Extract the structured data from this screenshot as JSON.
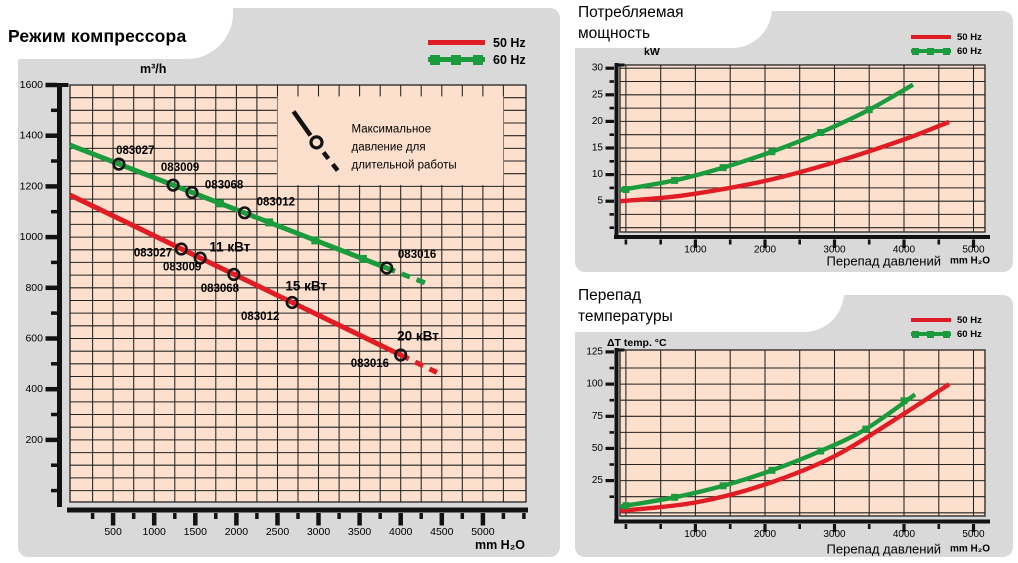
{
  "colors": {
    "panel": "#d9d9d9",
    "plot_bg": "#fce0cd",
    "grid": "#222222",
    "axis": "#121212",
    "red": "#e01d24",
    "green": "#1b9b3d",
    "text": "#000000"
  },
  "chart_data": [
    {
      "id": "compressor-mode",
      "type": "line",
      "title": "Режим компрессора",
      "ylabel": "m³/h",
      "xlabel": "",
      "x_unit": "mm H₂O",
      "xlim": [
        -25,
        5525
      ],
      "ylim": [
        -45,
        1600
      ],
      "x_ticks": [
        500,
        1000,
        1500,
        2000,
        2500,
        3000,
        3500,
        4000,
        4500,
        5000
      ],
      "x_minor": 250,
      "x_grid": 250,
      "y_ticks": [
        200,
        400,
        600,
        800,
        1000,
        1200,
        1400,
        1600
      ],
      "y_minor": 100,
      "y_grid": 50,
      "grid": true,
      "legend_position": "top-right",
      "legend": [
        {
          "label": "50 Hz",
          "color": "red"
        },
        {
          "label": "60 Hz",
          "color": "green"
        }
      ],
      "series": [
        {
          "name": "50 Hz",
          "color": "red",
          "points": [
            [
              -25,
              1166
            ],
            [
              4000,
              535
            ]
          ],
          "dashed_ext": [
            [
              4440,
              466
            ]
          ],
          "markers": [
            {
              "shape": "circle",
              "points": [
                [
                  1330,
                  953
                ],
                [
                  1560,
                  917
                ],
                [
                  1970,
                  853
                ],
                [
                  2680,
                  742
                ],
                [
                  4000,
                  535
                ]
              ]
            }
          ],
          "marker_labels": [
            {
              "text": "083027",
              "x": 985,
              "y": 935
            },
            {
              "text": "083009",
              "x": 1340,
              "y": 880
            },
            {
              "text": "083068",
              "x": 1800,
              "y": 795
            },
            {
              "text": "083012",
              "x": 2290,
              "y": 685
            },
            {
              "text": "083016",
              "x": 3625,
              "y": 500
            }
          ]
        },
        {
          "name": "60 Hz",
          "color": "green",
          "points": [
            [
              -25,
              1363
            ],
            [
              3830,
              878
            ]
          ],
          "dashed_ext": [
            [
              4300,
              819
            ]
          ],
          "markers": [
            {
              "shape": "circle",
              "points": [
                [
                  570,
                  1288
                ],
                [
                  1230,
                  1205
                ],
                [
                  1460,
                  1176
                ],
                [
                  2100,
                  1096
                ],
                [
                  3830,
                  878
                ]
              ]
            },
            {
              "shape": "square",
              "points": [
                [
                  1800,
                  1133
                ],
                [
                  2400,
                  1058
                ],
                [
                  2960,
                  987
                ],
                [
                  3540,
                  914
                ]
              ]
            }
          ],
          "marker_labels": [
            {
              "text": "083027",
              "x": 770,
              "y": 1340
            },
            {
              "text": "083009",
              "x": 1315,
              "y": 1272
            },
            {
              "text": "083068",
              "x": 1850,
              "y": 1203
            },
            {
              "text": "083012",
              "x": 2480,
              "y": 1136
            },
            {
              "text": "083016",
              "x": 4200,
              "y": 930
            }
          ]
        }
      ],
      "extra_labels": [
        {
          "text": "11 кВт",
          "x": 1920,
          "y": 960
        },
        {
          "text": "15 кВт",
          "x": 2850,
          "y": 807
        },
        {
          "text": "20 кВт",
          "x": 4210,
          "y": 610
        }
      ],
      "annotation": {
        "lines": [
          "Максимальное",
          "давление для",
          "длительной работы"
        ],
        "box": {
          "x1": 2500,
          "y1": 1205,
          "x2": 5250,
          "y2": 1555
        }
      }
    },
    {
      "id": "power-consumption",
      "type": "line",
      "title": "Потребляемая мощность",
      "ylabel": "kW",
      "xlabel": "Перепад давлений",
      "x_unit": "mm H₂O",
      "xlim": [
        -85,
        5165
      ],
      "ylim": [
        -0.8,
        30.6
      ],
      "x_ticks": [
        1000,
        2000,
        3000,
        4000,
        5000
      ],
      "x_minor": 500,
      "x_grid": 500,
      "y_ticks": [
        5,
        10,
        15,
        20,
        25,
        30
      ],
      "y_minor": 2.5,
      "y_grid": 2.5,
      "grid": true,
      "legend_position": "top-right",
      "legend": [
        {
          "label": "50 Hz",
          "color": "red"
        },
        {
          "label": "60 Hz",
          "color": "green"
        }
      ],
      "series": [
        {
          "name": "50 Hz",
          "color": "red",
          "points": [
            [
              -85,
              5.0
            ],
            [
              500,
              5.6
            ],
            [
              1000,
              6.4
            ],
            [
              2000,
              8.8
            ],
            [
              3000,
              12.3
            ],
            [
              4000,
              16.6
            ],
            [
              4650,
              19.9
            ]
          ],
          "markers": [],
          "marker_labels": []
        },
        {
          "name": "60 Hz",
          "color": "green",
          "points": [
            [
              -85,
              7.1
            ],
            [
              700,
              8.9
            ],
            [
              1400,
              11.3
            ],
            [
              2100,
              14.3
            ],
            [
              2800,
              17.9
            ],
            [
              3500,
              22.2
            ],
            [
              4130,
              26.9
            ]
          ],
          "markers": [
            {
              "shape": "square",
              "points": [
                [
                  0,
                  7.2
                ],
                [
                  700,
                  8.9
                ],
                [
                  1400,
                  11.3
                ],
                [
                  2100,
                  14.3
                ],
                [
                  2800,
                  17.9
                ],
                [
                  3500,
                  22.2
                ]
              ]
            }
          ],
          "marker_labels": []
        }
      ],
      "extra_labels": []
    },
    {
      "id": "temperature-differential",
      "type": "line",
      "title": "Перепад температуры",
      "ylabel": "ΔT temp. °C",
      "xlabel": "Перепад давлений",
      "x_unit": "mm H₂O",
      "xlim": [
        -85,
        5165
      ],
      "ylim": [
        -2.5,
        126.5
      ],
      "x_ticks": [
        1000,
        2000,
        3000,
        4000,
        5000
      ],
      "x_minor": 500,
      "x_grid": 500,
      "y_ticks": [
        25,
        50,
        75,
        100,
        125
      ],
      "y_minor": 12.5,
      "y_grid": 12.5,
      "grid": true,
      "legend_position": "top-right",
      "legend": [
        {
          "label": "50 Hz",
          "color": "red"
        },
        {
          "label": "60 Hz",
          "color": "green"
        }
      ],
      "series": [
        {
          "name": "50 Hz",
          "color": "red",
          "points": [
            [
              -85,
              1.5
            ],
            [
              1000,
              8
            ],
            [
              2000,
              22
            ],
            [
              3000,
              44
            ],
            [
              4000,
              77
            ],
            [
              4650,
              100
            ]
          ],
          "markers": [],
          "marker_labels": []
        },
        {
          "name": "60 Hz",
          "color": "green",
          "points": [
            [
              -85,
              4.8
            ],
            [
              700,
              12
            ],
            [
              1400,
              21
            ],
            [
              2100,
              33
            ],
            [
              2800,
              48
            ],
            [
              3450,
              65
            ],
            [
              4160,
              92
            ]
          ],
          "markers": [
            {
              "shape": "square",
              "points": [
                [
                  0,
                  5.5
                ],
                [
                  700,
                  12
                ],
                [
                  1400,
                  21
                ],
                [
                  2100,
                  33
                ],
                [
                  2800,
                  48
                ],
                [
                  3450,
                  65
                ],
                [
                  4000,
                  87
                ]
              ]
            }
          ],
          "marker_labels": []
        }
      ],
      "extra_labels": []
    }
  ]
}
